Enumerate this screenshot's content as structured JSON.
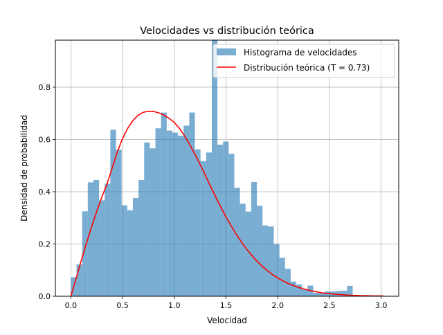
{
  "chart_data": {
    "type": "bar",
    "title": "Velocidades vs distribución teórica",
    "xlabel": "Velocidad",
    "ylabel": "Densidad de probabilidad",
    "xlim": [
      -0.15,
      3.17
    ],
    "ylim": [
      0,
      0.98
    ],
    "xticks": [
      0.0,
      0.5,
      1.0,
      1.5,
      2.0,
      2.5,
      3.0
    ],
    "xtick_labels": [
      "0.0",
      "0.5",
      "1.0",
      "1.5",
      "2.0",
      "2.5",
      "3.0"
    ],
    "yticks": [
      0.0,
      0.2,
      0.4,
      0.6,
      0.8
    ],
    "ytick_labels": [
      "0.0",
      "0.2",
      "0.4",
      "0.6",
      "0.8"
    ],
    "grid": true,
    "legend_position": "top-right",
    "histogram": {
      "name": "Histograma de velocidades",
      "color": "#1f77b4",
      "alpha": 0.6,
      "x_start": 0.0,
      "bin_width": 0.0545,
      "values": [
        0.073,
        0.122,
        0.325,
        0.436,
        0.445,
        0.367,
        0.431,
        0.637,
        0.561,
        0.348,
        0.329,
        0.376,
        0.445,
        0.588,
        0.566,
        0.643,
        0.703,
        0.634,
        0.626,
        0.614,
        0.653,
        0.703,
        0.562,
        0.517,
        0.55,
        0.99,
        0.58,
        0.592,
        0.545,
        0.415,
        0.354,
        0.324,
        0.437,
        0.346,
        0.271,
        0.267,
        0.2,
        0.147,
        0.105,
        0.056,
        0.045,
        0.027,
        0.041,
        0.013,
        0.013,
        0.018,
        0.018,
        0.02,
        0.021,
        0.04
      ]
    },
    "series": [
      {
        "name": "Distribución teórica (T = 0.73)",
        "color": "#ff0000",
        "x": [
          0.0,
          0.05,
          0.1,
          0.15,
          0.2,
          0.25,
          0.3,
          0.35,
          0.4,
          0.45,
          0.5,
          0.55,
          0.6,
          0.65,
          0.7,
          0.75,
          0.8,
          0.85,
          0.9,
          0.95,
          1.0,
          1.05,
          1.1,
          1.15,
          1.2,
          1.25,
          1.3,
          1.35,
          1.4,
          1.45,
          1.5,
          1.55,
          1.6,
          1.65,
          1.7,
          1.75,
          1.8,
          1.85,
          1.9,
          1.95,
          2.0,
          2.05,
          2.1,
          2.15,
          2.2,
          2.25,
          2.3,
          2.35,
          2.4,
          2.45,
          2.5,
          2.55,
          2.6,
          2.65,
          2.7,
          2.75,
          2.8,
          2.85,
          2.9,
          2.95,
          3.02
        ],
        "y": [
          0.0,
          0.068,
          0.136,
          0.202,
          0.265,
          0.325,
          0.38,
          0.43,
          0.492,
          0.553,
          0.604,
          0.643,
          0.672,
          0.693,
          0.704,
          0.708,
          0.707,
          0.702,
          0.693,
          0.681,
          0.665,
          0.642,
          0.613,
          0.58,
          0.543,
          0.504,
          0.463,
          0.421,
          0.38,
          0.341,
          0.303,
          0.269,
          0.237,
          0.207,
          0.18,
          0.156,
          0.134,
          0.115,
          0.098,
          0.083,
          0.07,
          0.059,
          0.049,
          0.041,
          0.034,
          0.028,
          0.023,
          0.019,
          0.015,
          0.012,
          0.01,
          0.008,
          0.0065,
          0.005,
          0.004,
          0.0032,
          0.0025,
          0.002,
          0.0015,
          0.0012,
          0.001
        ]
      }
    ]
  }
}
